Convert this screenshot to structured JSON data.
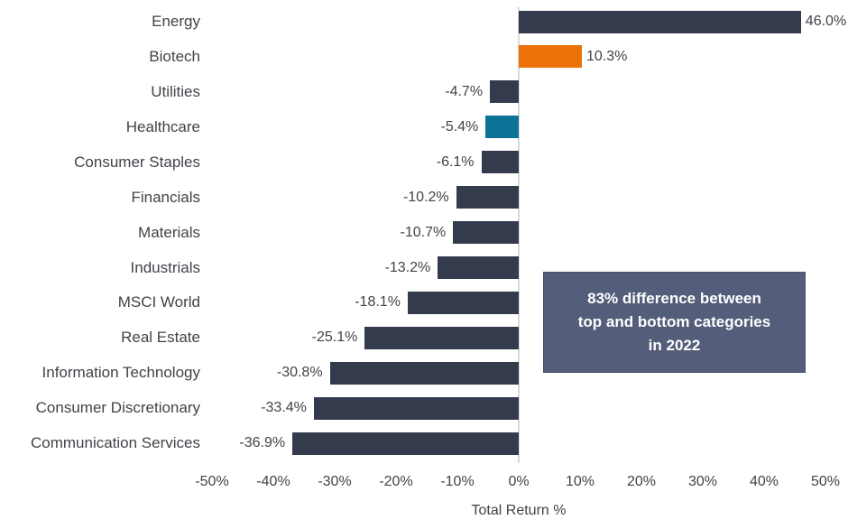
{
  "chart_data": {
    "type": "bar",
    "orientation": "horizontal",
    "xlabel": "Total Return %",
    "categories": [
      "Energy",
      "Biotech",
      "Utilities",
      "Healthcare",
      "Consumer Staples",
      "Financials",
      "Materials",
      "Industrials",
      "MSCI World",
      "Real Estate",
      "Information Technology",
      "Consumer Discretionary",
      "Communication Services"
    ],
    "values": [
      46.0,
      10.3,
      -4.7,
      -5.4,
      -6.1,
      -10.2,
      -10.7,
      -13.2,
      -18.1,
      -25.1,
      -30.8,
      -33.4,
      -36.9
    ],
    "value_labels": [
      "46.0%",
      "10.3%",
      "-4.7%",
      "-5.4%",
      "-6.1%",
      "-10.2%",
      "-10.7%",
      "-13.2%",
      "-18.1%",
      "-25.1%",
      "-30.8%",
      "-33.4%",
      "-36.9%"
    ],
    "xlim": [
      -50,
      50
    ],
    "xticks": [
      -50,
      -40,
      -30,
      -20,
      -10,
      0,
      10,
      20,
      30,
      40,
      50
    ],
    "xtick_labels": [
      "-50%",
      "-40%",
      "-30%",
      "-20%",
      "-10%",
      "0%",
      "10%",
      "20%",
      "30%",
      "40%",
      "50%"
    ],
    "grid": "zero-line-only",
    "legend": "none",
    "colors": {
      "bar_default": "#333b4d",
      "bar_biotech": "#ec7108",
      "bar_healthcare": "#0c7396",
      "zero_line": "#d9d9d9",
      "text": "#414349",
      "annotation_bg": "#545e7a",
      "annotation_fg": "#ffffff"
    },
    "bar_color_overrides": {
      "Biotech": "bar_biotech",
      "Healthcare": "bar_healthcare"
    },
    "annotation": {
      "text": "83% difference between\ntop and bottom categories\nin 2022"
    }
  }
}
